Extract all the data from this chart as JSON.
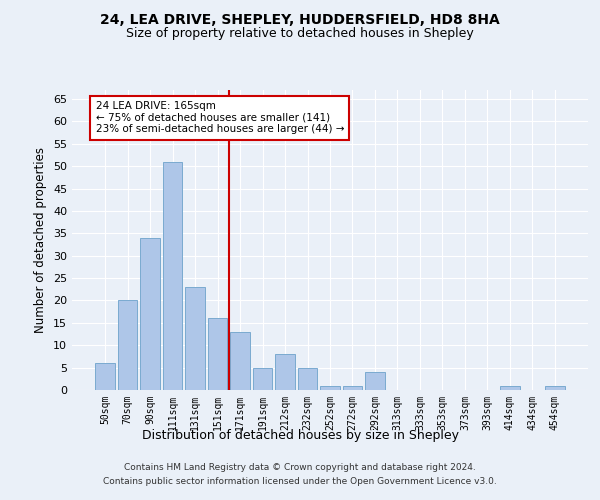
{
  "title1": "24, LEA DRIVE, SHEPLEY, HUDDERSFIELD, HD8 8HA",
  "title2": "Size of property relative to detached houses in Shepley",
  "xlabel": "Distribution of detached houses by size in Shepley",
  "ylabel": "Number of detached properties",
  "categories": [
    "50sqm",
    "70sqm",
    "90sqm",
    "111sqm",
    "131sqm",
    "151sqm",
    "171sqm",
    "191sqm",
    "212sqm",
    "232sqm",
    "252sqm",
    "272sqm",
    "292sqm",
    "313sqm",
    "333sqm",
    "353sqm",
    "373sqm",
    "393sqm",
    "414sqm",
    "434sqm",
    "454sqm"
  ],
  "values": [
    6,
    20,
    34,
    51,
    23,
    16,
    13,
    5,
    8,
    5,
    1,
    1,
    4,
    0,
    0,
    0,
    0,
    0,
    1,
    0,
    1
  ],
  "bar_color": "#aec6e8",
  "bar_edgecolor": "#7aaad0",
  "vline_pos": 5.5,
  "vline_color": "#cc0000",
  "annotation_text": "24 LEA DRIVE: 165sqm\n← 75% of detached houses are smaller (141)\n23% of semi-detached houses are larger (44) →",
  "annotation_box_facecolor": "#ffffff",
  "annotation_box_edgecolor": "#cc0000",
  "ylim": [
    0,
    67
  ],
  "yticks": [
    0,
    5,
    10,
    15,
    20,
    25,
    30,
    35,
    40,
    45,
    50,
    55,
    60,
    65
  ],
  "background_color": "#eaf0f8",
  "grid_color": "#ffffff",
  "footnote1": "Contains HM Land Registry data © Crown copyright and database right 2024.",
  "footnote2": "Contains public sector information licensed under the Open Government Licence v3.0."
}
